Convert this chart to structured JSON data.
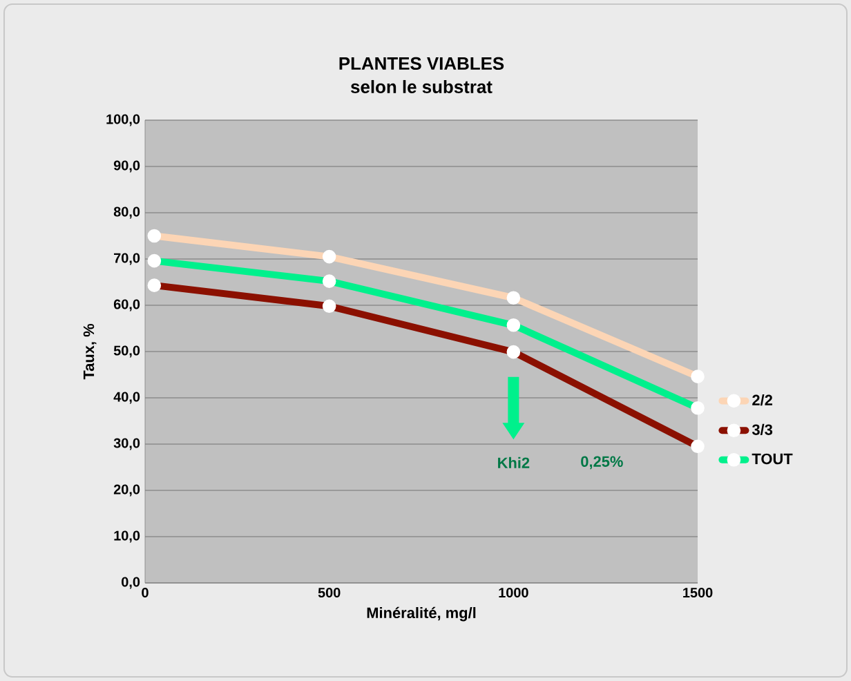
{
  "chart_data": {
    "type": "line",
    "title": "PLANTES VIABLES",
    "subtitle": "selon le substrat",
    "xlabel": "Minéralité, mg/l",
    "ylabel": "Taux, %",
    "x": [
      25,
      500,
      1000,
      1500
    ],
    "series": [
      {
        "name": "2/2",
        "color": "#fcd5b5",
        "values": [
          75,
          70.5,
          61.6,
          44.6
        ]
      },
      {
        "name": "3/3",
        "color": "#8b1000",
        "values": [
          64.3,
          59.8,
          49.9,
          29.5
        ]
      },
      {
        "name": "TOUT",
        "color": "#00f08c",
        "values": [
          69.6,
          65.2,
          55.7,
          37.8
        ]
      }
    ],
    "xlim": [
      0,
      1500
    ],
    "ylim": [
      0,
      100
    ],
    "xticks": [
      0,
      500,
      1000,
      1500
    ],
    "yticks": [
      {
        "value": 0,
        "label": "0,0"
      },
      {
        "value": 10,
        "label": "10,0"
      },
      {
        "value": 20,
        "label": "20,0"
      },
      {
        "value": 30,
        "label": "30,0"
      },
      {
        "value": 40,
        "label": "40,0"
      },
      {
        "value": 50,
        "label": "50,0"
      },
      {
        "value": 60,
        "label": "60,0"
      },
      {
        "value": 70,
        "label": "70,0"
      },
      {
        "value": 80,
        "label": "80,0"
      },
      {
        "value": 90,
        "label": "90,0"
      },
      {
        "value": 100,
        "label": "100,0"
      }
    ],
    "annotations": [
      "Khi2",
      "0,25%"
    ],
    "grid": "y",
    "legend": "right",
    "marker": "circle",
    "line_style": "solid"
  }
}
